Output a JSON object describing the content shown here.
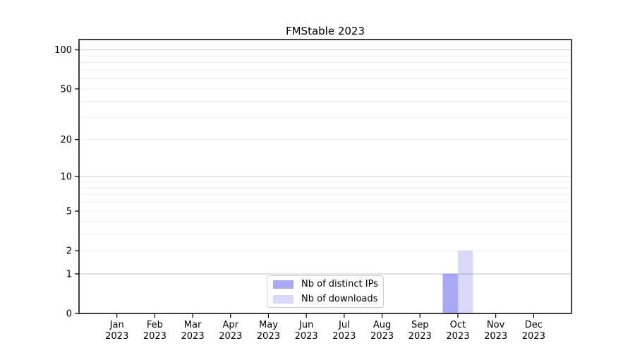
{
  "title": "FMStable 2023",
  "chart_data": {
    "type": "bar",
    "title": "FMStable 2023",
    "categories": [
      "Jan",
      "Feb",
      "Mar",
      "Apr",
      "May",
      "Jun",
      "Jul",
      "Aug",
      "Sep",
      "Oct",
      "Nov",
      "Dec"
    ],
    "category_year": "2023",
    "series": [
      {
        "name": "Nb of distinct IPs",
        "color": "rgba(25,25,230,0.38)",
        "values": [
          0,
          0,
          0,
          0,
          0,
          0,
          0,
          0,
          0,
          1,
          0,
          0
        ]
      },
      {
        "name": "Nb of downloads",
        "color": "rgba(25,25,230,0.17)",
        "values": [
          0,
          0,
          0,
          0,
          0,
          0,
          0,
          0,
          0,
          2,
          0,
          0
        ]
      }
    ],
    "scale": "log10(1+x)",
    "ylim": [
      0,
      120
    ],
    "y_ticks": [
      0,
      1,
      2,
      5,
      10,
      20,
      50,
      100
    ],
    "y_major_gridlines": [
      1,
      10,
      100
    ],
    "y_minor_gridlines": [
      2,
      3,
      4,
      5,
      6,
      7,
      8,
      9,
      20,
      30,
      40,
      50,
      60,
      70,
      80,
      90
    ],
    "xlabel": "",
    "ylabel": "",
    "grid": "both",
    "legend_position": "lower center"
  },
  "colors": {
    "background": "#ffffff",
    "spine": "#000000",
    "major_grid": "#c9c9c9",
    "minor_grid": "#ededed",
    "legend_border": "#cccccc",
    "text": "#000000"
  }
}
